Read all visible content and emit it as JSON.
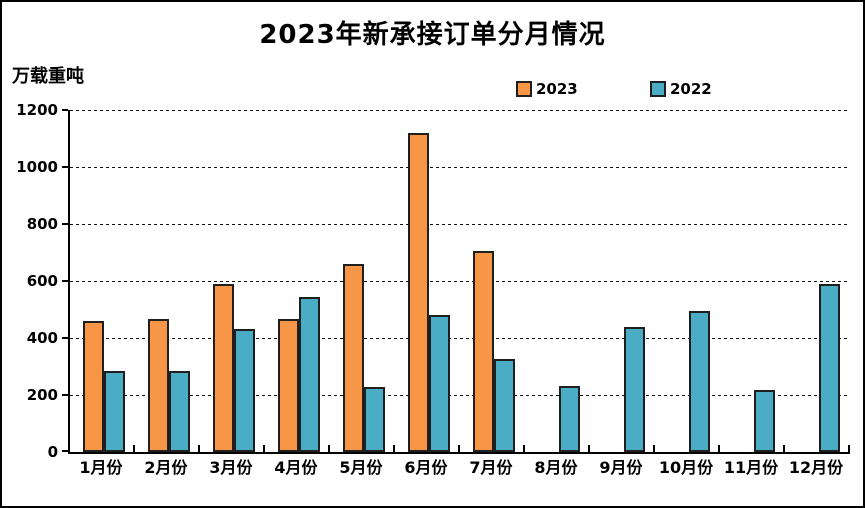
{
  "chart_data": {
    "type": "bar",
    "title": "2023年新承接订单分月情况",
    "ylabel": "万载重吨",
    "categories": [
      "1月份",
      "2月份",
      "3月份",
      "4月份",
      "5月份",
      "6月份",
      "7月份",
      "8月份",
      "9月份",
      "10月份",
      "11月份",
      "12月份"
    ],
    "series": [
      {
        "name": "2023",
        "color": "#F79646",
        "values": [
          460,
          465,
          590,
          465,
          660,
          1120,
          705,
          null,
          null,
          null,
          null,
          null
        ]
      },
      {
        "name": "2022",
        "color": "#4BACC6",
        "values": [
          285,
          285,
          430,
          545,
          228,
          480,
          325,
          232,
          440,
          495,
          218,
          590
        ]
      }
    ],
    "ylim": [
      0,
      1200
    ],
    "yticks": [
      0,
      200,
      400,
      600,
      800,
      1000,
      1200
    ],
    "grid": "horizontal-dashed",
    "legend_position": "top-center",
    "bar_border_color": "#1f1f1f"
  }
}
